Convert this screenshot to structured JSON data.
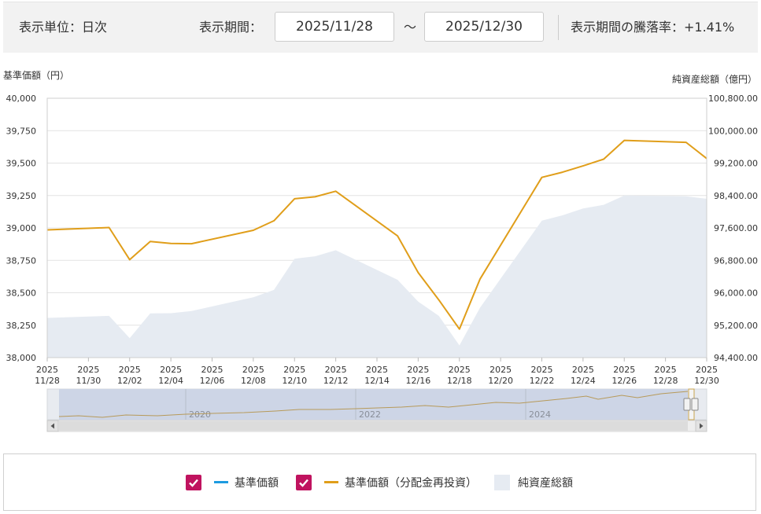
{
  "header": {
    "unit_label": "表示単位：日次",
    "period_label": "表示期間：",
    "start_date": "2025/11/28",
    "tilde": "～",
    "end_date": "2025/12/30",
    "change_label": "表示期間の騰落率：+1.41%"
  },
  "navigator": {
    "year_labels": [
      "2020",
      "2022",
      "2024"
    ]
  },
  "legend": {
    "items": [
      {
        "label": "基準価額",
        "checked": true,
        "color": "#1d9be0"
      },
      {
        "label": "基準価額（分配金再投資）",
        "checked": true,
        "color": "#e09e1a"
      },
      {
        "label": "純資産総額",
        "color": "#e6ebf2"
      }
    ]
  },
  "chart_data": {
    "type": "line",
    "ylabel_left": "基準価額（円）",
    "ylabel_right": "純資産総額（億円）",
    "ylim_left": [
      38000,
      40000
    ],
    "ylim_right": [
      94400,
      100800
    ],
    "yticks_left": [
      "40,000",
      "39,750",
      "39,500",
      "39,250",
      "39,000",
      "38,750",
      "38,500",
      "38,250",
      "38,000"
    ],
    "yticks_right": [
      "100,800.00",
      "100,000.00",
      "99,200.00",
      "98,400.00",
      "97,600.00",
      "96,800.00",
      "96,000.00",
      "95,200.00",
      "94,400.00"
    ],
    "xlim": [
      "2025-11-28",
      "2025-12-30"
    ],
    "xticks": [
      {
        "date": "2025-11-28",
        "year": "2025",
        "md": "11/28"
      },
      {
        "date": "2025-11-30",
        "year": "2025",
        "md": "11/30"
      },
      {
        "date": "2025-12-02",
        "year": "2025",
        "md": "12/02"
      },
      {
        "date": "2025-12-04",
        "year": "2025",
        "md": "12/04"
      },
      {
        "date": "2025-12-06",
        "year": "2025",
        "md": "12/06"
      },
      {
        "date": "2025-12-08",
        "year": "2025",
        "md": "12/08"
      },
      {
        "date": "2025-12-10",
        "year": "2025",
        "md": "12/10"
      },
      {
        "date": "2025-12-12",
        "year": "2025",
        "md": "12/12"
      },
      {
        "date": "2025-12-14",
        "year": "2025",
        "md": "12/14"
      },
      {
        "date": "2025-12-16",
        "year": "2025",
        "md": "12/16"
      },
      {
        "date": "2025-12-18",
        "year": "2025",
        "md": "12/18"
      },
      {
        "date": "2025-12-20",
        "year": "2025",
        "md": "12/20"
      },
      {
        "date": "2025-12-22",
        "year": "2025",
        "md": "12/22"
      },
      {
        "date": "2025-12-24",
        "year": "2025",
        "md": "12/24"
      },
      {
        "date": "2025-12-26",
        "year": "2025",
        "md": "12/26"
      },
      {
        "date": "2025-12-28",
        "year": "2025",
        "md": "12/28"
      },
      {
        "date": "2025-12-30",
        "year": "2025",
        "md": "12/30"
      }
    ],
    "grid": true,
    "legend_position": "bottom",
    "series": [
      {
        "name": "基準価額（分配金再投資）",
        "axis": "left",
        "type": "line",
        "color": "#e09e1a",
        "x": [
          "2025-11-28",
          "2025-12-01",
          "2025-12-02",
          "2025-12-03",
          "2025-12-04",
          "2025-12-05",
          "2025-12-08",
          "2025-12-09",
          "2025-12-10",
          "2025-12-11",
          "2025-12-12",
          "2025-12-15",
          "2025-12-16",
          "2025-12-17",
          "2025-12-18",
          "2025-12-19",
          "2025-12-22",
          "2025-12-23",
          "2025-12-24",
          "2025-12-25",
          "2025-12-26",
          "2025-12-29",
          "2025-12-30"
        ],
        "values": [
          38985,
          39003,
          38755,
          38895,
          38880,
          38878,
          38982,
          39055,
          39225,
          39240,
          39283,
          38938,
          38655,
          38445,
          38220,
          38605,
          39390,
          39430,
          39478,
          39530,
          39675,
          39660,
          39535
        ]
      },
      {
        "name": "純資産総額",
        "axis": "right",
        "type": "area",
        "color": "#e6ebf2",
        "x": [
          "2025-11-28",
          "2025-12-01",
          "2025-12-02",
          "2025-12-03",
          "2025-12-04",
          "2025-12-05",
          "2025-12-08",
          "2025-12-09",
          "2025-12-10",
          "2025-12-11",
          "2025-12-12",
          "2025-12-15",
          "2025-12-16",
          "2025-12-17",
          "2025-12-18",
          "2025-12-19",
          "2025-12-22",
          "2025-12-23",
          "2025-12-24",
          "2025-12-25",
          "2025-12-26",
          "2025-12-29",
          "2025-12-30"
        ],
        "values": [
          95380,
          95430,
          94880,
          95490,
          95495,
          95550,
          95890,
          96070,
          96840,
          96900,
          97050,
          96320,
          95780,
          95430,
          94700,
          95630,
          97780,
          97910,
          98080,
          98170,
          98400,
          98380,
          98320
        ]
      }
    ]
  }
}
